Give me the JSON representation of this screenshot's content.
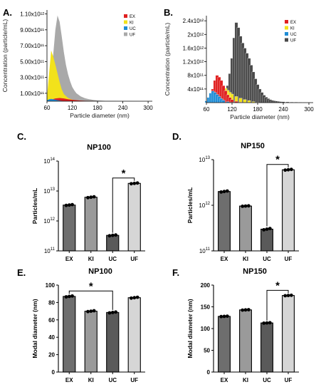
{
  "panels": {
    "A": "A.",
    "B": "B.",
    "C": "C.",
    "D": "D.",
    "E": "E.",
    "F": "F."
  },
  "colors": {
    "EX": "#e02020",
    "KI": "#f2e21b",
    "UC": "#1f8dd6",
    "UF": "#a9a9a9",
    "UF_B": "#4a4a4a",
    "bar_EX": "#6e6e6e",
    "bar_KI": "#9a9a9a",
    "bar_UC": "#5a5a5a",
    "bar_UF": "#d6d6d6"
  },
  "chart_data": [
    {
      "id": "A",
      "type": "area",
      "xlabel": "Particle diameter (nm)",
      "ylabel": "Concentration (particle/mL)",
      "x_ticks": [
        60,
        120,
        180,
        240,
        300
      ],
      "y_tick_labels": [
        "1.00x10¹¹",
        "3.00x10¹¹",
        "5.00x10¹¹",
        "7.00x10¹¹",
        "9.00x10¹¹",
        "1.10x10¹²"
      ],
      "y_tick_values": [
        100000000000.0,
        300000000000.0,
        500000000000.0,
        700000000000.0,
        900000000000.0,
        1100000000000.0
      ],
      "xlim": [
        60,
        310
      ],
      "ylim": [
        0,
        1150000000000.0
      ],
      "legend": [
        "EX",
        "KI",
        "UC",
        "UF"
      ],
      "legend_position": "top-right",
      "series": [
        {
          "name": "UF",
          "x": [
            60,
            65,
            70,
            75,
            80,
            85,
            90,
            95,
            100,
            105,
            110,
            115,
            120,
            125,
            130,
            140,
            150,
            160,
            170,
            180,
            190,
            200,
            220,
            240,
            260,
            280,
            300
          ],
          "values": [
            15000000000.0,
            100000000000.0,
            300000000000.0,
            600000000000.0,
            900000000000.0,
            1080000000000.0,
            1000000000000.0,
            820000000000.0,
            620000000000.0,
            460000000000.0,
            340000000000.0,
            250000000000.0,
            180000000000.0,
            135000000000.0,
            100000000000.0,
            60000000000.0,
            38000000000.0,
            25000000000.0,
            16000000000.0,
            10000000000.0,
            6000000000.0,
            4000000000.0,
            2000000000.0,
            1000000000.0,
            500000000.0,
            200000000.0,
            0
          ]
        },
        {
          "name": "KI",
          "x": [
            60,
            65,
            70,
            75,
            80,
            85,
            90,
            95,
            100,
            110,
            120,
            130,
            140,
            160,
            180
          ],
          "values": [
            50000000000.0,
            350000000000.0,
            640000000000.0,
            560000000000.0,
            460000000000.0,
            350000000000.0,
            240000000000.0,
            150000000000.0,
            90000000000.0,
            40000000000.0,
            20000000000.0,
            10000000000.0,
            5000000000.0,
            2000000000.0,
            0
          ]
        },
        {
          "name": "EX",
          "x": [
            60,
            70,
            80,
            90,
            100,
            110,
            120,
            140,
            160,
            180
          ],
          "values": [
            5000000000.0,
            20000000000.0,
            35000000000.0,
            40000000000.0,
            35000000000.0,
            25000000000.0,
            18000000000.0,
            8000000000.0,
            3000000000.0,
            0
          ]
        },
        {
          "name": "UC",
          "x": [
            60,
            65,
            70,
            75,
            80,
            90,
            100,
            120
          ],
          "values": [
            10000000000.0,
            25000000000.0,
            30000000000.0,
            25000000000.0,
            18000000000.0,
            8000000000.0,
            3000000000.0,
            0
          ]
        }
      ]
    },
    {
      "id": "B",
      "type": "bar",
      "xlabel": "Particle diameter (nm)",
      "ylabel": "Concentration (particle/mL)",
      "x_ticks": [
        60,
        120,
        180,
        240,
        300
      ],
      "y_tick_labels": [
        "4x10¹¹",
        "8x10¹¹",
        "1.2x10¹²",
        "1.6x10¹²",
        "2x10¹²",
        "2.4x10¹²"
      ],
      "y_tick_values": [
        400000000000.0,
        800000000000.0,
        1200000000000.0,
        1600000000000.0,
        2000000000000.0,
        2400000000000.0
      ],
      "xlim": [
        60,
        310
      ],
      "ylim": [
        0,
        2550000000000.0
      ],
      "legend": [
        "EX",
        "KI",
        "UC",
        "UF"
      ],
      "legend_position": "top-right",
      "series": [
        {
          "name": "UF",
          "x": [
            75,
            85,
            95,
            105,
            110,
            115,
            120,
            125,
            130,
            135,
            140,
            145,
            150,
            155,
            160,
            165,
            170,
            175,
            180,
            185,
            190,
            195,
            200,
            205,
            210,
            215,
            220,
            225,
            230,
            235,
            240,
            250,
            260,
            270,
            280,
            290,
            300
          ],
          "values": [
            20000000000.0,
            50000000000.0,
            120000000000.0,
            300000000000.0,
            500000000000.0,
            850000000000.0,
            1300000000000.0,
            1900000000000.0,
            2350000000000.0,
            2200000000000.0,
            1950000000000.0,
            1750000000000.0,
            1600000000000.0,
            1450000000000.0,
            1300000000000.0,
            1100000000000.0,
            900000000000.0,
            700000000000.0,
            530000000000.0,
            400000000000.0,
            300000000000.0,
            220000000000.0,
            160000000000.0,
            120000000000.0,
            90000000000.0,
            70000000000.0,
            55000000000.0,
            45000000000.0,
            35000000000.0,
            30000000000.0,
            25000000000.0,
            20000000000.0,
            15000000000.0,
            12000000000.0,
            10000000000.0,
            8000000000.0,
            5000000000.0
          ]
        },
        {
          "name": "KI",
          "x": [
            70,
            75,
            80,
            85,
            90,
            95,
            100,
            105,
            110,
            115,
            120,
            130,
            140,
            150,
            160,
            170,
            180
          ],
          "values": [
            100000000000.0,
            250000000000.0,
            400000000000.0,
            500000000000.0,
            550000000000.0,
            530000000000.0,
            480000000000.0,
            420000000000.0,
            360000000000.0,
            300000000000.0,
            250000000000.0,
            180000000000.0,
            130000000000.0,
            90000000000.0,
            60000000000.0,
            30000000000.0,
            10000000000.0
          ]
        },
        {
          "name": "EX",
          "x": [
            70,
            75,
            80,
            85,
            90,
            95,
            100,
            105,
            110,
            115,
            120,
            130,
            140
          ],
          "values": [
            200000000000.0,
            400000000000.0,
            650000000000.0,
            800000000000.0,
            750000000000.0,
            650000000000.0,
            500000000000.0,
            350000000000.0,
            230000000000.0,
            150000000000.0,
            90000000000.0,
            40000000000.0,
            15000000000.0
          ]
        },
        {
          "name": "UC",
          "x": [
            60,
            65,
            70,
            75,
            80,
            85,
            90,
            95,
            100,
            110,
            120
          ],
          "values": [
            50000000000.0,
            150000000000.0,
            280000000000.0,
            340000000000.0,
            300000000000.0,
            240000000000.0,
            180000000000.0,
            120000000000.0,
            70000000000.0,
            30000000000.0,
            10000000000.0
          ]
        }
      ]
    },
    {
      "id": "C",
      "type": "bar",
      "title": "NP100",
      "ylabel": "Particles/mL",
      "scale": "log",
      "categories": [
        "EX",
        "KI",
        "UC",
        "UF"
      ],
      "values": [
        3400000000000.0,
        6200000000000.0,
        330000000000.0,
        18000000000000.0
      ],
      "points": [
        [
          3300000000000.0,
          3400000000000.0,
          3500000000000.0
        ],
        [
          6000000000000.0,
          6200000000000.0,
          6400000000000.0
        ],
        [
          320000000000.0,
          330000000000.0,
          340000000000.0
        ],
        [
          17500000000000.0,
          18000000000000.0,
          18500000000000.0
        ]
      ],
      "y_tick_base": "10",
      "y_tick_exponents": [
        "11",
        "12",
        "13",
        "14"
      ],
      "ylim": [
        100000000000.0,
        100000000000000.0
      ],
      "significance": {
        "from": "UC",
        "to": "UF",
        "label": "*"
      }
    },
    {
      "id": "D",
      "type": "bar",
      "title": "NP150",
      "ylabel": "Particles/mL",
      "scale": "log",
      "categories": [
        "EX",
        "KI",
        "UC",
        "UF"
      ],
      "values": [
        2000000000000.0,
        960000000000.0,
        300000000000.0,
        6000000000000.0
      ],
      "points": [
        [
          1950000000000.0,
          2000000000000.0,
          2050000000000.0
        ],
        [
          950000000000.0,
          960000000000.0,
          970000000000.0
        ],
        [
          290000000000.0,
          300000000000.0,
          310000000000.0
        ],
        [
          5900000000000.0,
          6000000000000.0,
          6100000000000.0
        ]
      ],
      "y_tick_base": "10",
      "y_tick_exponents": [
        "11",
        "12",
        "13"
      ],
      "ylim": [
        100000000000.0,
        10000000000000.0
      ],
      "significance": {
        "from": "UC",
        "to": "UF",
        "label": "*"
      }
    },
    {
      "id": "E",
      "type": "bar",
      "title": "NP100",
      "ylabel": "Modal diameter (nm)",
      "categories": [
        "EX",
        "KI",
        "UC",
        "UF"
      ],
      "values": [
        87,
        70,
        68.5,
        85.5
      ],
      "points": [
        [
          86.5,
          87,
          87.5
        ],
        [
          69.5,
          70,
          70.5
        ],
        [
          68,
          68.5,
          69
        ],
        [
          85,
          85.5,
          86
        ]
      ],
      "y_ticks": [
        0,
        20,
        40,
        60,
        80,
        100
      ],
      "ylim": [
        0,
        100
      ],
      "significance": {
        "from": "EX",
        "to": "UC",
        "label": "*"
      }
    },
    {
      "id": "F",
      "type": "bar",
      "title": "NP150",
      "ylabel": "Modal diameter (nm)",
      "categories": [
        "EX",
        "KI",
        "UC",
        "UF"
      ],
      "values": [
        128,
        143,
        113,
        176
      ],
      "points": [
        [
          127.5,
          128,
          128.5
        ],
        [
          142.5,
          143,
          143.5
        ],
        [
          112.5,
          113,
          113.5
        ],
        [
          175.5,
          176,
          176.5
        ]
      ],
      "y_ticks": [
        0,
        50,
        100,
        150,
        200
      ],
      "ylim": [
        0,
        200
      ],
      "significance": {
        "from": "UC",
        "to": "UF",
        "label": "*"
      }
    }
  ]
}
